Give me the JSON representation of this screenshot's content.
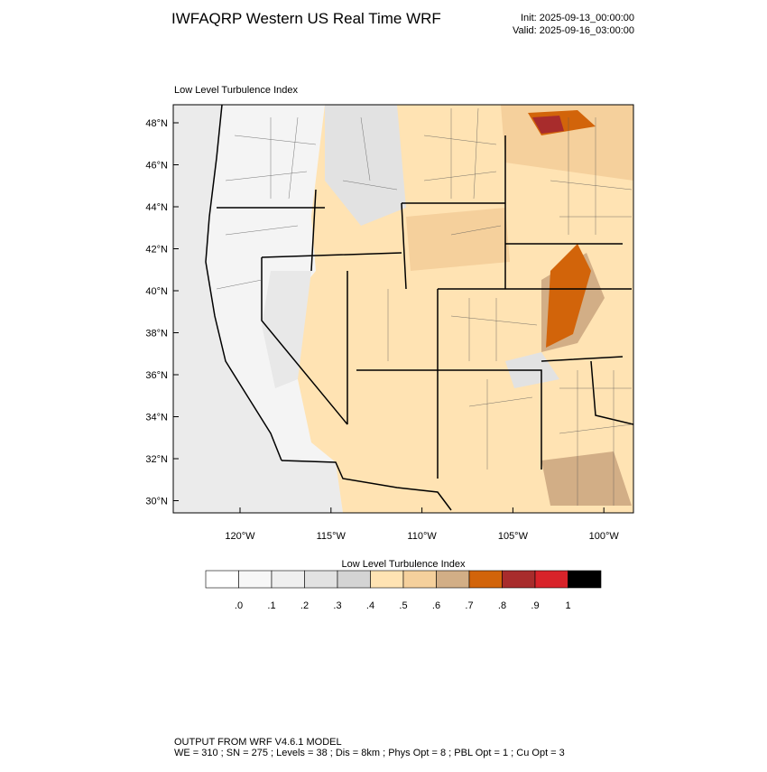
{
  "header": {
    "title": "IWFAQRP Western US Real Time WRF",
    "init": "Init: 2025-09-13_00:00:00",
    "valid": "Valid: 2025-09-16_03:00:00"
  },
  "map": {
    "subtitle": "Low Level Turbulence Index",
    "lat_labels": [
      "48°N",
      "46°N",
      "44°N",
      "42°N",
      "40°N",
      "38°N",
      "36°N",
      "34°N",
      "32°N",
      "30°N"
    ],
    "lon_labels": [
      "120°W",
      "115°W",
      "110°W",
      "105°W",
      "100°W"
    ]
  },
  "colorbar": {
    "title": "Low Level Turbulence Index",
    "colors": [
      "#ffffff",
      "#f7f7f7",
      "#efefef",
      "#e2e2e2",
      "#d4d4d4",
      "#ffe3b3",
      "#f5d09c",
      "#d2ae86",
      "#d2640a",
      "#a82c2c",
      "#d8232a",
      "#000000"
    ],
    "labels": [
      ".0",
      ".1",
      ".2",
      ".3",
      ".4",
      ".5",
      ".6",
      ".7",
      ".8",
      ".9",
      "1"
    ]
  },
  "footer": {
    "line1": "OUTPUT FROM WRF V4.6.1 MODEL",
    "line2": "WE = 310 ; SN = 275 ; Levels = 38 ; Dis = 8km ; Phys Opt = 8 ; PBL Opt = 1 ; Cu Opt = 3"
  }
}
